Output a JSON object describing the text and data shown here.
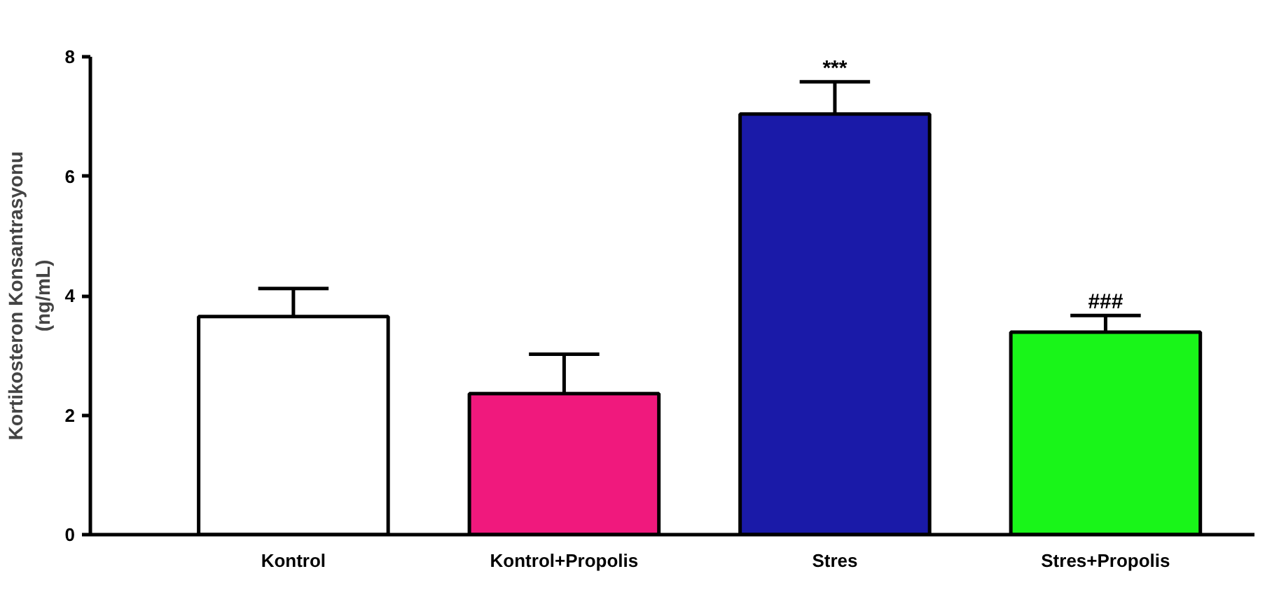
{
  "chart_data": {
    "type": "bar",
    "ylabel": "Kortikosteron Konsantrasyonu\n(ng/mL)",
    "categories": [
      "Kontrol",
      "Kontrol+Propolis",
      "Stres",
      "Stres+Propolis"
    ],
    "values": [
      3.65,
      2.36,
      7.04,
      3.39
    ],
    "colors": [
      "#ffffff",
      "#f0197d",
      "#1a1aa8",
      "#19f519"
    ],
    "errors": [
      [
        3.65,
        4.12
      ],
      [
        2.36,
        3.02
      ],
      [
        7.04,
        7.58
      ],
      [
        3.39,
        3.67
      ]
    ],
    "ylim": [
      0,
      8
    ],
    "yticks": [
      0,
      2,
      4,
      6,
      8
    ],
    "grid": false,
    "annotations": [
      {
        "text": "***",
        "x": "Stres",
        "y": 7.04
      },
      {
        "text": "###",
        "x": "Stres+Propolis",
        "y": 3.39
      }
    ]
  }
}
